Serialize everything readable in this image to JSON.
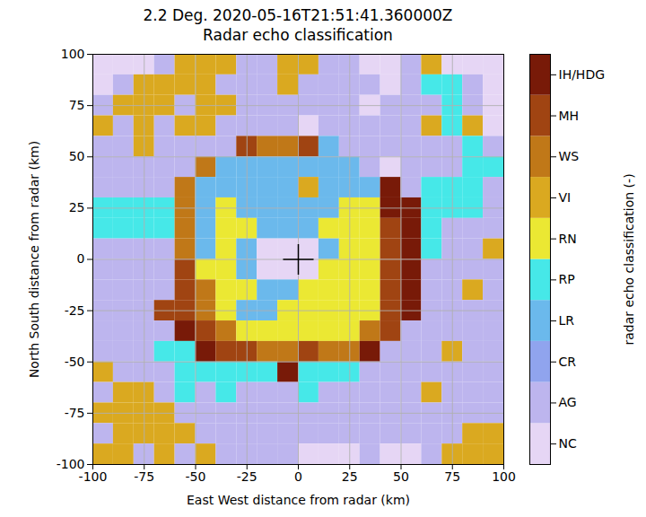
{
  "chart_data": {
    "type": "heatmap",
    "title": "2.2 Deg. 2020-05-16T21:51:41.360000Z",
    "subtitle": "Radar echo classification",
    "xlabel": "East West distance from radar (km)",
    "ylabel": "North South distance from radar (km)",
    "xlim": [
      -100,
      100
    ],
    "ylim": [
      -100,
      100
    ],
    "xticks": [
      -100,
      -75,
      -50,
      -25,
      0,
      25,
      50,
      75,
      100
    ],
    "yticks": [
      -100,
      -75,
      -50,
      -25,
      0,
      25,
      50,
      75,
      100
    ],
    "grid": true,
    "x_edges": [
      -100,
      -90,
      -80,
      -70,
      -60,
      -50,
      -40,
      -30,
      -20,
      -10,
      0,
      10,
      20,
      30,
      40,
      50,
      60,
      70,
      80,
      90,
      100
    ],
    "y_edges": [
      100,
      90,
      80,
      70,
      60,
      50,
      40,
      30,
      20,
      10,
      0,
      -10,
      -20,
      -30,
      -40,
      -50,
      -60,
      -70,
      -80,
      -90,
      -100
    ],
    "cells": [
      [
        0,
        0,
        0,
        1,
        6,
        6,
        6,
        1,
        1,
        6,
        6,
        1,
        1,
        0,
        0,
        1,
        6,
        0,
        0,
        0
      ],
      [
        0,
        1,
        6,
        6,
        6,
        6,
        1,
        1,
        1,
        6,
        1,
        1,
        1,
        1,
        0,
        1,
        4,
        4,
        1,
        0
      ],
      [
        1,
        6,
        6,
        6,
        1,
        6,
        6,
        1,
        1,
        1,
        1,
        1,
        1,
        0,
        1,
        1,
        1,
        4,
        1,
        0
      ],
      [
        6,
        1,
        6,
        1,
        6,
        6,
        1,
        1,
        1,
        1,
        0,
        1,
        1,
        1,
        1,
        1,
        6,
        4,
        6,
        0
      ],
      [
        1,
        1,
        6,
        1,
        1,
        1,
        1,
        8,
        7,
        7,
        8,
        3,
        1,
        1,
        1,
        1,
        1,
        1,
        4,
        1
      ],
      [
        1,
        1,
        1,
        1,
        1,
        7,
        3,
        3,
        3,
        3,
        3,
        3,
        3,
        1,
        0,
        1,
        1,
        1,
        4,
        4
      ],
      [
        1,
        1,
        1,
        1,
        7,
        3,
        3,
        3,
        3,
        3,
        6,
        3,
        3,
        3,
        9,
        1,
        4,
        4,
        4,
        1
      ],
      [
        4,
        4,
        4,
        4,
        7,
        3,
        5,
        3,
        3,
        3,
        3,
        3,
        5,
        5,
        9,
        9,
        4,
        4,
        4,
        1
      ],
      [
        4,
        4,
        4,
        4,
        7,
        3,
        5,
        5,
        3,
        3,
        3,
        5,
        5,
        5,
        8,
        9,
        4,
        1,
        1,
        1
      ],
      [
        1,
        1,
        1,
        1,
        7,
        3,
        5,
        3,
        0,
        0,
        0,
        3,
        5,
        5,
        8,
        9,
        4,
        1,
        1,
        6
      ],
      [
        1,
        1,
        1,
        1,
        8,
        5,
        5,
        3,
        0,
        0,
        0,
        5,
        5,
        5,
        8,
        9,
        1,
        1,
        1,
        1
      ],
      [
        1,
        1,
        1,
        1,
        8,
        7,
        5,
        5,
        3,
        3,
        5,
        5,
        5,
        5,
        8,
        9,
        1,
        1,
        6,
        1
      ],
      [
        1,
        1,
        1,
        8,
        8,
        7,
        5,
        3,
        3,
        5,
        5,
        5,
        5,
        5,
        8,
        9,
        1,
        1,
        1,
        1
      ],
      [
        1,
        1,
        1,
        1,
        9,
        8,
        7,
        5,
        5,
        5,
        5,
        5,
        5,
        7,
        8,
        1,
        1,
        1,
        1,
        1
      ],
      [
        1,
        1,
        1,
        4,
        4,
        9,
        8,
        8,
        7,
        7,
        8,
        7,
        7,
        9,
        1,
        1,
        1,
        6,
        1,
        1
      ],
      [
        6,
        1,
        1,
        1,
        4,
        4,
        4,
        4,
        4,
        9,
        4,
        4,
        4,
        1,
        1,
        1,
        1,
        1,
        1,
        1
      ],
      [
        1,
        6,
        6,
        1,
        4,
        1,
        4,
        1,
        1,
        1,
        4,
        1,
        1,
        1,
        1,
        1,
        6,
        1,
        1,
        1
      ],
      [
        6,
        6,
        6,
        6,
        1,
        1,
        1,
        1,
        1,
        1,
        1,
        1,
        1,
        1,
        1,
        1,
        1,
        1,
        1,
        1
      ],
      [
        1,
        6,
        6,
        6,
        6,
        1,
        1,
        1,
        1,
        1,
        1,
        1,
        1,
        1,
        1,
        1,
        1,
        1,
        6,
        6
      ],
      [
        6,
        6,
        1,
        6,
        1,
        6,
        1,
        1,
        1,
        1,
        0,
        0,
        0,
        1,
        0,
        0,
        1,
        6,
        6,
        6
      ]
    ],
    "classes": [
      {
        "value": 0,
        "label": "NC",
        "color": "#e6d6f5"
      },
      {
        "value": 1,
        "label": "AG",
        "color": "#bdb5ee"
      },
      {
        "value": 2,
        "label": "CR",
        "color": "#90a4ee"
      },
      {
        "value": 3,
        "label": "LR",
        "color": "#6bb9ec"
      },
      {
        "value": 4,
        "label": "RP",
        "color": "#46e8e8"
      },
      {
        "value": 5,
        "label": "RN",
        "color": "#ebe833"
      },
      {
        "value": 6,
        "label": "VI",
        "color": "#daa920"
      },
      {
        "value": 7,
        "label": "WS",
        "color": "#c07818"
      },
      {
        "value": 8,
        "label": "MH",
        "color": "#a04412"
      },
      {
        "value": 9,
        "label": "IH/HDG",
        "color": "#781a08"
      }
    ],
    "colorbar": {
      "label": "radar echo classification (-)",
      "range": [
        -0.5,
        9.5
      ]
    },
    "radar_location": {
      "x": 0,
      "y": 0,
      "marker": "plus"
    }
  }
}
